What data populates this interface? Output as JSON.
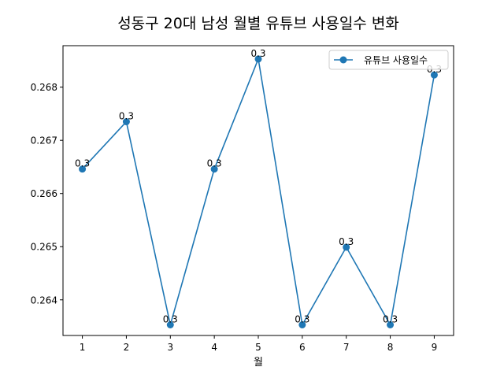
{
  "chart_data": {
    "type": "line",
    "title": "성동구 20대 남성 월별 유튜브 사용일수 변화",
    "xlabel": "월",
    "ylabel": "",
    "x": [
      1,
      2,
      3,
      4,
      5,
      6,
      7,
      8,
      9
    ],
    "xlim": [
      0.56,
      9.44
    ],
    "ylim": [
      0.26333,
      0.26878
    ],
    "yticks": [
      0.264,
      0.265,
      0.266,
      0.267,
      0.268
    ],
    "series": [
      {
        "name": "유튜브 사용일수",
        "color": "#1f77b4",
        "values": [
          0.26646,
          0.26735,
          0.26353,
          0.26646,
          0.26853,
          0.26353,
          0.26499,
          0.26353,
          0.26823
        ],
        "data_labels": [
          "0.3",
          "0.3",
          "0.3",
          "0.3",
          "0.3",
          "0.3",
          "0.3",
          "0.3",
          "0.3"
        ]
      }
    ],
    "legend": "top-right",
    "grid": false
  }
}
